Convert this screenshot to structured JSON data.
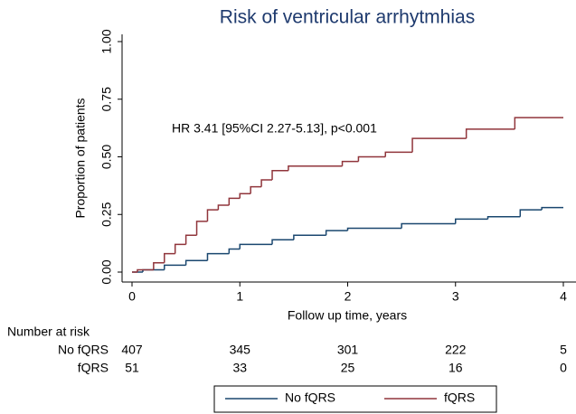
{
  "chart_data": {
    "type": "step",
    "title": "Risk of ventricular arrhytmhias",
    "xlabel": "Follow up time, years",
    "ylabel": "Proportion of patients",
    "annotation": "HR 3.41 [95%CI 2.27-5.13], p<0.001",
    "xlim": [
      0,
      4
    ],
    "xticks": [
      0,
      1,
      2,
      3,
      4
    ],
    "ylim": [
      0,
      1
    ],
    "yticks": [
      {
        "value": 0,
        "label": "0.00"
      },
      {
        "value": 0.25,
        "label": "0.25"
      },
      {
        "value": 0.5,
        "label": "0.50"
      },
      {
        "value": 0.75,
        "label": "0.75"
      },
      {
        "value": 1,
        "label": "1.00"
      }
    ],
    "grid": false,
    "series": [
      {
        "name": "No fQRS",
        "color": "#1a476f",
        "x": [
          0,
          0.1,
          0.3,
          0.5,
          0.7,
          0.9,
          1.0,
          1.3,
          1.5,
          1.8,
          2.0,
          2.5,
          3.0,
          3.3,
          3.6,
          3.8,
          4.0
        ],
        "values": [
          0,
          0.01,
          0.03,
          0.05,
          0.08,
          0.1,
          0.12,
          0.14,
          0.16,
          0.18,
          0.19,
          0.21,
          0.23,
          0.24,
          0.27,
          0.28,
          0.28
        ]
      },
      {
        "name": "fQRS",
        "color": "#90353b",
        "x": [
          0,
          0.05,
          0.2,
          0.3,
          0.4,
          0.5,
          0.6,
          0.7,
          0.8,
          0.9,
          1.0,
          1.1,
          1.2,
          1.3,
          1.45,
          1.95,
          2.1,
          2.35,
          2.6,
          3.1,
          3.55,
          4.0
        ],
        "values": [
          0,
          0.01,
          0.04,
          0.08,
          0.12,
          0.16,
          0.22,
          0.27,
          0.29,
          0.32,
          0.34,
          0.37,
          0.4,
          0.44,
          0.46,
          0.48,
          0.5,
          0.52,
          0.58,
          0.62,
          0.67,
          0.67
        ]
      }
    ],
    "risk_table": {
      "title": "Number at risk",
      "rows": [
        {
          "name": "No fQRS",
          "values": [
            407,
            345,
            301,
            222,
            5
          ]
        },
        {
          "name": "fQRS",
          "values": [
            51,
            33,
            25,
            16,
            0
          ]
        }
      ]
    }
  }
}
